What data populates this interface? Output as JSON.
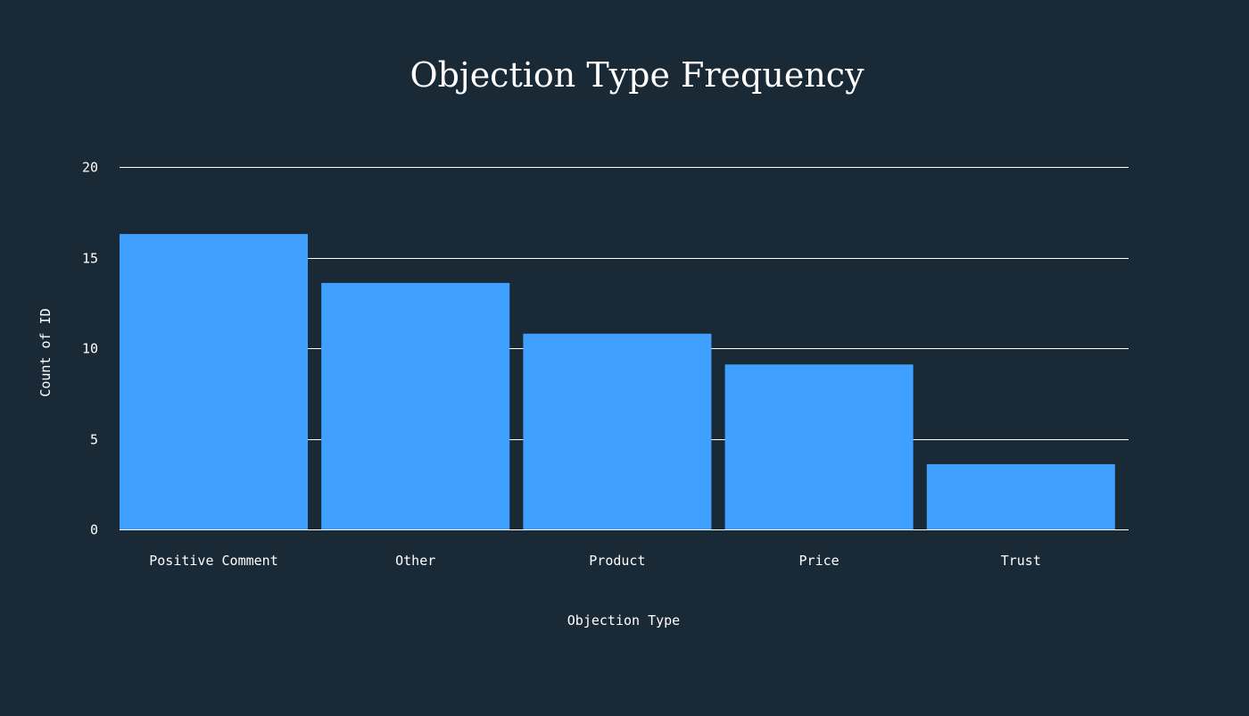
{
  "chart_data": {
    "type": "bar",
    "title": "Objection Type Frequency",
    "xlabel": "Objection Type",
    "ylabel": "Count of ID",
    "categories": [
      "Positive Comment",
      "Other",
      "Product",
      "Price",
      "Trust"
    ],
    "values": [
      16.3,
      13.6,
      10.8,
      9.1,
      3.6
    ],
    "ylim": [
      0,
      20
    ],
    "yticks": [
      "0",
      "5",
      "10",
      "15",
      "20"
    ],
    "grid": true,
    "legend": "none",
    "colors": {
      "background": "#192936",
      "bar": "#40A0FF",
      "text": "#ffffff",
      "grid": "#ffffff"
    }
  }
}
